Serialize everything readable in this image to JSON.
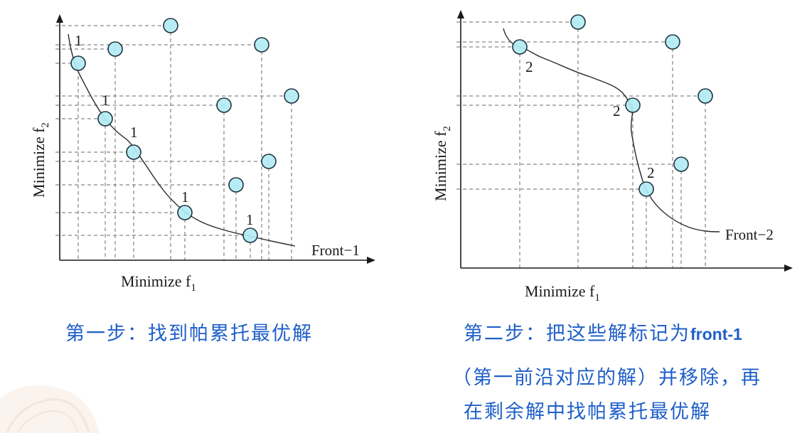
{
  "figure_left": {
    "y_label": {
      "text": "Minimize f",
      "sub": "2"
    },
    "x_label": {
      "text": "Minimize f",
      "sub": "1"
    },
    "front_label": "Front−1",
    "point_labels": [
      "1",
      "1",
      "1",
      "1",
      "1"
    ]
  },
  "figure_right": {
    "y_label": {
      "text": "Minimize f",
      "sub": "2"
    },
    "x_label": {
      "text": "Minimize f",
      "sub": "1"
    },
    "front_label": "Front−2",
    "point_labels": [
      "2",
      "2",
      "2"
    ]
  },
  "captions": {
    "step1": "第一步：找到帕累托最优解",
    "step2": {
      "line1_text": "第二步：把这些解标记为",
      "line1_highlight": "front-1",
      "line2": "（第一前沿对应的解）并移除，再",
      "line3": "在剩余解中找帕累托最优解"
    }
  },
  "colors": {
    "caption": "#1f5fc8",
    "point_fill": "#b3ecf4",
    "point_stroke": "#1e3340",
    "axis": "#1a1a1a",
    "guide": "#6a6a6a",
    "curve": "#2a2a2a"
  }
}
